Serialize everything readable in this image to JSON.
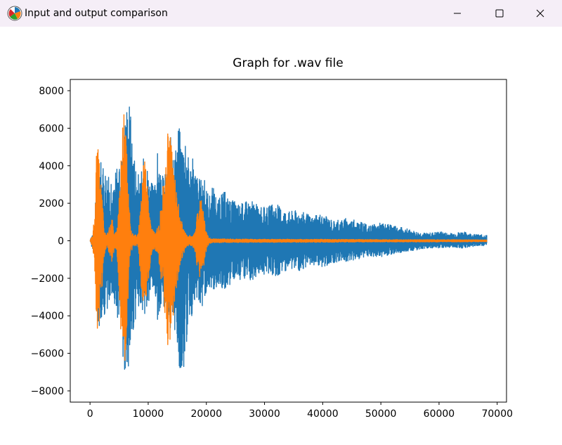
{
  "window": {
    "title": "Input and output comparison",
    "app_icon": "matplotlib-icon",
    "controls": [
      "minimize-icon",
      "maximize-icon",
      "close-icon"
    ]
  },
  "chart_data": {
    "type": "line",
    "title": "Graph for .wav file",
    "xlabel": "",
    "ylabel": "",
    "xlim": [
      -3400,
      71600
    ],
    "ylim": [
      -8600,
      8600
    ],
    "xticks": [
      0,
      10000,
      20000,
      30000,
      40000,
      50000,
      60000,
      70000
    ],
    "yticks": [
      -8000,
      -6000,
      -4000,
      -2000,
      0,
      2000,
      4000,
      6000,
      8000
    ],
    "grid": false,
    "colors": [
      "#1f77b4",
      "#ff7f0e"
    ],
    "series": [
      {
        "style": "dense-waveform",
        "envelope_x": [
          0,
          800,
          1200,
          1600,
          2200,
          2800,
          3400,
          4000,
          4600,
          5200,
          5800,
          6200,
          6800,
          7400,
          8000,
          8600,
          9200,
          9800,
          10400,
          11000,
          11600,
          12200,
          12800,
          13400,
          14000,
          14600,
          15200,
          15800,
          16400,
          17000,
          17600,
          18200,
          18800,
          19400,
          20000,
          20600,
          21200,
          22000,
          23000,
          24000,
          25000,
          26000,
          27000,
          28000,
          29000,
          30000,
          32000,
          34000,
          36000,
          38000,
          40000,
          42000,
          44000,
          46000,
          48000,
          50000,
          52000,
          54000,
          56000,
          58000,
          60000,
          62000,
          64000,
          66000,
          68200
        ],
        "envelope_max": [
          0,
          800,
          4400,
          4600,
          3900,
          4000,
          3200,
          2800,
          4300,
          3700,
          6100,
          7600,
          7800,
          5200,
          4100,
          3200,
          4500,
          4200,
          3300,
          2800,
          4800,
          3300,
          3700,
          3800,
          6300,
          4900,
          6500,
          5500,
          6200,
          4300,
          4500,
          3800,
          3300,
          3600,
          2900,
          2500,
          3000,
          2200,
          2700,
          2300,
          2100,
          2000,
          2200,
          2200,
          1800,
          1800,
          2000,
          1600,
          1700,
          1300,
          1400,
          1100,
          1200,
          1100,
          800,
          1000,
          800,
          700,
          500,
          400,
          500,
          400,
          500,
          350,
          300
        ],
        "envelope_min": [
          0,
          -900,
          -4400,
          -4600,
          -4000,
          -3900,
          -3300,
          -2900,
          -4400,
          -3700,
          -7000,
          -6800,
          -7200,
          -5200,
          -4000,
          -3300,
          -4200,
          -4100,
          -3200,
          -2800,
          -4400,
          -3400,
          -3600,
          -3900,
          -6400,
          -5000,
          -6600,
          -7700,
          -6200,
          -4300,
          -4200,
          -3800,
          -3300,
          -3500,
          -2800,
          -2500,
          -2900,
          -2300,
          -2600,
          -2400,
          -2200,
          -2100,
          -2200,
          -2100,
          -1800,
          -1800,
          -1900,
          -1600,
          -1600,
          -1300,
          -1400,
          -1200,
          -1100,
          -1000,
          -800,
          -900,
          -700,
          -600,
          -500,
          -400,
          -400,
          -350,
          -400,
          -300,
          -250
        ]
      },
      {
        "style": "dense-waveform",
        "envelope_x": [
          0,
          400,
          800,
          1100,
          1400,
          1700,
          2000,
          2300,
          2600,
          3000,
          3400,
          3800,
          4200,
          4600,
          5000,
          5400,
          5700,
          6000,
          6300,
          6600,
          7000,
          7400,
          7800,
          8200,
          8600,
          9000,
          9400,
          9700,
          10000,
          10300,
          10600,
          11000,
          11500,
          12000,
          12500,
          13000,
          13400,
          13800,
          14200,
          14500,
          14800,
          15200,
          15600,
          16000,
          16400,
          16800,
          17200,
          17600,
          18000,
          18500,
          19000,
          19400,
          19800,
          20200,
          20600,
          21000,
          22000,
          30000,
          40000,
          50000,
          60000,
          68200
        ],
        "envelope_max": [
          0,
          300,
          1400,
          4600,
          5000,
          4100,
          3200,
          1200,
          500,
          400,
          800,
          1200,
          400,
          600,
          2600,
          5400,
          7600,
          6800,
          5100,
          2800,
          700,
          400,
          300,
          300,
          1500,
          3500,
          4600,
          3600,
          2300,
          1400,
          700,
          500,
          600,
          1300,
          2800,
          4000,
          6400,
          5800,
          4300,
          3600,
          2900,
          2000,
          1300,
          800,
          400,
          300,
          300,
          300,
          500,
          1800,
          2500,
          1900,
          800,
          300,
          150,
          100,
          100,
          80,
          80,
          60,
          60,
          50
        ],
        "envelope_min": [
          0,
          -300,
          -1400,
          -4300,
          -5300,
          -4400,
          -3300,
          -1300,
          -500,
          -400,
          -800,
          -1200,
          -400,
          -600,
          -2800,
          -5800,
          -7100,
          -6800,
          -5200,
          -2900,
          -700,
          -400,
          -300,
          -300,
          -1600,
          -3500,
          -3300,
          -3300,
          -2400,
          -1400,
          -700,
          -500,
          -600,
          -1400,
          -3200,
          -4200,
          -6500,
          -5900,
          -4500,
          -3700,
          -2800,
          -2000,
          -1300,
          -800,
          -400,
          -300,
          -300,
          -300,
          -500,
          -1800,
          -2000,
          -1700,
          -800,
          -300,
          -150,
          -100,
          -100,
          -80,
          -80,
          -60,
          -60,
          -50
        ]
      }
    ]
  }
}
